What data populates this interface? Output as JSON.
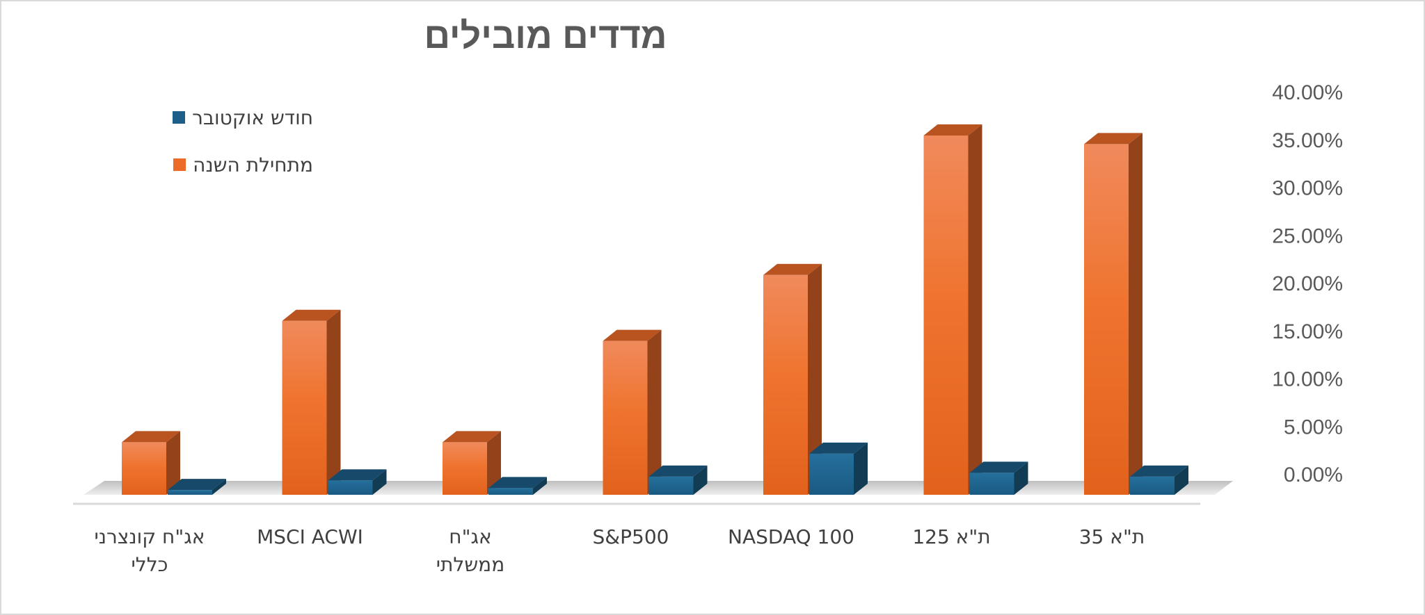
{
  "chart_data": {
    "type": "bar",
    "title": "מדדים מובילים",
    "categories": [
      [
        "אג\"ח קונצרני",
        "כללי"
      ],
      [
        "MSCI ACWI"
      ],
      [
        "אג\"ח",
        "ממשלתי"
      ],
      [
        "S&P500"
      ],
      [
        "NASDAQ 100"
      ],
      [
        "ת\"א 125"
      ],
      [
        "ת\"א 35"
      ]
    ],
    "series": [
      {
        "name": "מתחילת השנה",
        "color": "#ed6b28",
        "values": [
          5.5,
          18.2,
          5.5,
          16.1,
          23.0,
          37.6,
          36.7
        ]
      },
      {
        "name": "חודש אוקטובר",
        "color": "#1d5f88",
        "values": [
          0.5,
          1.5,
          0.7,
          1.9,
          4.3,
          2.3,
          1.9
        ]
      }
    ],
    "yticks": [
      "40.00%",
      "35.00%",
      "30.00%",
      "25.00%",
      "20.00%",
      "15.00%",
      "10.00%",
      "5.00%",
      "0.00%"
    ],
    "ylim": [
      0,
      40
    ],
    "grid": false,
    "legend_position": "top-left",
    "style": "3d-column"
  }
}
